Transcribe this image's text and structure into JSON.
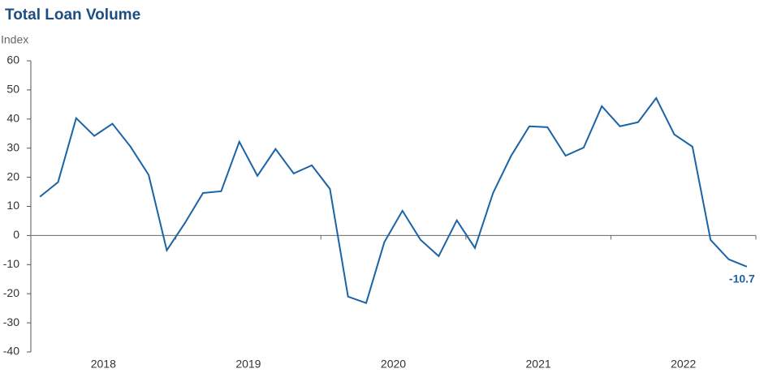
{
  "chart_data": {
    "type": "line",
    "title": "Total Loan Volume",
    "y_label": "Index",
    "x": [
      2018.0625,
      2018.1875,
      2018.3125,
      2018.4375,
      2018.5625,
      2018.6875,
      2018.8125,
      2018.9375,
      2019.0625,
      2019.1875,
      2019.3125,
      2019.4375,
      2019.5625,
      2019.6875,
      2019.8125,
      2019.9375,
      2020.0625,
      2020.1875,
      2020.3125,
      2020.4375,
      2020.5625,
      2020.6875,
      2020.8125,
      2020.9375,
      2021.0625,
      2021.1875,
      2021.3125,
      2021.4375,
      2021.5625,
      2021.6875,
      2021.8125,
      2021.9375,
      2022.0625,
      2022.1875,
      2022.3125,
      2022.4375,
      2022.5625,
      2022.6875,
      2022.8125,
      2022.9375
    ],
    "series": [
      {
        "name": "Total Loan Volume",
        "color": "#1a63a5",
        "values": [
          13.3,
          18.3,
          40.3,
          34.2,
          38.4,
          30.5,
          20.8,
          -5.1,
          4.3,
          14.6,
          15.2,
          32.2,
          20.5,
          29.7,
          21.3,
          24.1,
          16.0,
          -21.0,
          -23.2,
          -2.3,
          8.5,
          -1.5,
          -7.1,
          5.2,
          -4.3,
          14.6,
          27.4,
          37.5,
          37.2,
          27.4,
          30.2,
          44.4,
          37.5,
          38.9,
          47.2,
          34.7,
          30.5,
          -1.5,
          -8.2,
          -10.7
        ]
      }
    ],
    "xlim": [
      2018,
      2023
    ],
    "xticks": [
      {
        "value": 2018.5,
        "label": "2018"
      },
      {
        "value": 2019.5,
        "label": "2019"
      },
      {
        "value": 2020.5,
        "label": "2020"
      },
      {
        "value": 2021.5,
        "label": "2021"
      },
      {
        "value": 2022.5,
        "label": "2022"
      }
    ],
    "xtick_marks": [
      2018,
      2019,
      2020,
      2021,
      2022,
      2023
    ],
    "ylim": [
      -40,
      60
    ],
    "yticks": [
      -40,
      -30,
      -20,
      -10,
      0,
      10,
      20,
      30,
      40,
      50,
      60
    ],
    "end_label_index": 39
  }
}
